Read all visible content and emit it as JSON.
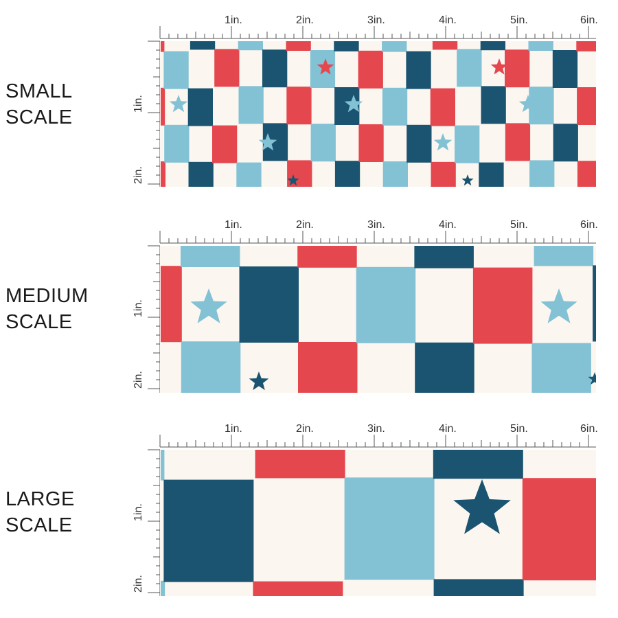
{
  "sections": [
    {
      "id": "small",
      "line1": "SMALL",
      "line2": "SCALE"
    },
    {
      "id": "medium",
      "line1": "MEDIUM",
      "line2": "SCALE"
    },
    {
      "id": "large",
      "line1": "LARGE",
      "line2": "SCALE"
    }
  ],
  "ruler": {
    "horizontal_labels": [
      "1in.",
      "2in.",
      "3in.",
      "4in.",
      "5in.",
      "6in."
    ],
    "vertical_labels": [
      "1in.",
      "2in."
    ]
  },
  "colors": {
    "red": "#e5474f",
    "light_blue": "#83c1d4",
    "navy": "#1b5470",
    "cream": "#fbf7f0"
  }
}
